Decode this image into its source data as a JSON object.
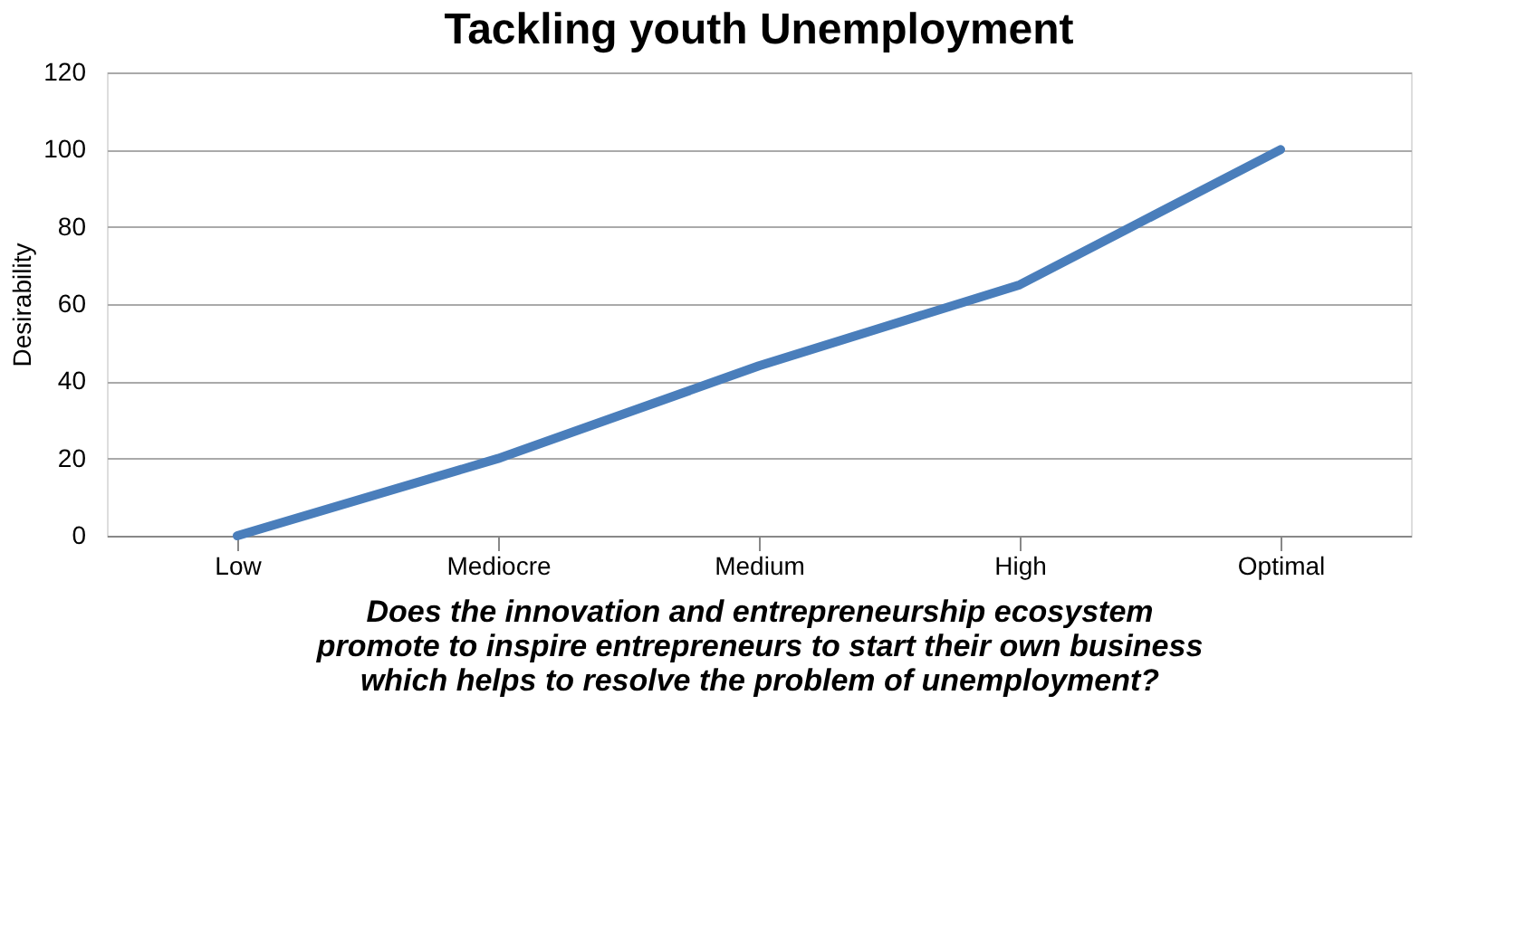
{
  "chart_data": {
    "type": "line",
    "title": "Tackling youth Unemployment",
    "xlabel": "Does the innovation and entrepreneurship ecosystem\npromote to inspire entrepreneurs to start their own business\nwhich helps to resolve the problem of unemployment?",
    "ylabel": "Desirability",
    "categories": [
      "Low",
      "Mediocre",
      "Medium",
      "High",
      "Optimal"
    ],
    "series": [
      {
        "color": "#4a7ebb",
        "values": [
          0,
          20,
          44,
          65,
          100
        ]
      }
    ],
    "ylim": [
      0,
      120
    ],
    "yticks": [
      0,
      20,
      40,
      60,
      80,
      100,
      120
    ],
    "grid": "y",
    "legend": false,
    "marker": "none",
    "line_style": "solid"
  }
}
